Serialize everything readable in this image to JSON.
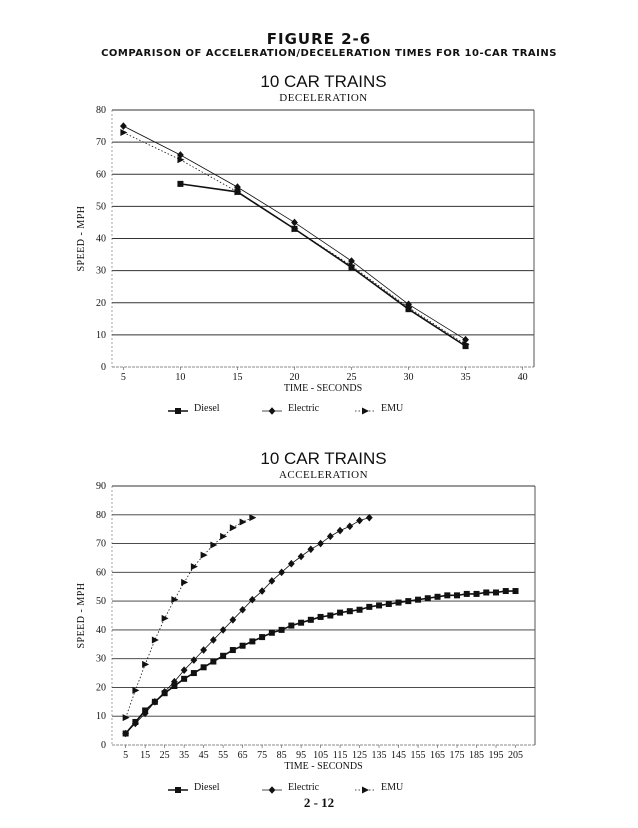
{
  "figure": {
    "number": "FIGURE 2-6",
    "subtitle": "COMPARISON OF ACCELERATION/DECELERATION TIMES FOR 10-CAR TRAINS"
  },
  "page_number": "2 - 12",
  "series_styles": {
    "Diesel": {
      "marker": "square",
      "line": "solid-bold",
      "color": "#111111"
    },
    "Electric": {
      "marker": "diamond",
      "line": "solid-thin",
      "color": "#111111"
    },
    "EMU": {
      "marker": "triangle-right",
      "line": "dotted",
      "color": "#111111"
    }
  },
  "chart_data": [
    {
      "type": "line",
      "title": "10 CAR TRAINS",
      "subtitle": "DECELERATION",
      "xlabel": "TIME - SECONDS",
      "ylabel": "SPEED - MPH",
      "xlim": [
        4,
        41
      ],
      "ylim": [
        0,
        80
      ],
      "xticks": [
        5,
        10,
        15,
        20,
        25,
        30,
        35,
        40
      ],
      "yticks": [
        0,
        10,
        20,
        30,
        40,
        50,
        60,
        70,
        80
      ],
      "grid": "horizontal",
      "legend": "bottom",
      "series": [
        {
          "name": "Diesel",
          "x": [
            10,
            15,
            20,
            25,
            30,
            35
          ],
          "y": [
            57,
            54.5,
            43,
            31,
            18,
            6.5
          ]
        },
        {
          "name": "Electric",
          "x": [
            5,
            10,
            15,
            20,
            25,
            30,
            35
          ],
          "y": [
            75,
            66,
            56,
            45,
            33,
            19.5,
            8.5
          ]
        },
        {
          "name": "EMU",
          "x": [
            5,
            10,
            15,
            20,
            25,
            30,
            35
          ],
          "y": [
            73,
            64.5,
            54.5,
            43,
            31.5,
            18.5,
            7
          ]
        }
      ]
    },
    {
      "type": "line",
      "title": "10 CAR TRAINS",
      "subtitle": "ACCELERATION",
      "xlabel": "TIME - SECONDS",
      "ylabel": "SPEED - MPH",
      "xlim": [
        -2,
        215
      ],
      "ylim": [
        0,
        90
      ],
      "xticks": [
        5,
        15,
        25,
        35,
        45,
        55,
        65,
        75,
        85,
        95,
        105,
        115,
        125,
        135,
        145,
        155,
        165,
        175,
        185,
        195,
        205
      ],
      "yticks": [
        0,
        10,
        20,
        30,
        40,
        50,
        60,
        70,
        80,
        90
      ],
      "grid": "horizontal",
      "legend": "bottom",
      "series": [
        {
          "name": "Diesel",
          "x": [
            5,
            10,
            15,
            20,
            25,
            30,
            35,
            40,
            45,
            50,
            55,
            60,
            65,
            70,
            75,
            80,
            85,
            90,
            95,
            100,
            105,
            110,
            115,
            120,
            125,
            130,
            135,
            140,
            145,
            150,
            155,
            160,
            165,
            170,
            175,
            180,
            185,
            190,
            195,
            200,
            205
          ],
          "y": [
            4,
            8,
            12,
            15,
            18,
            20.5,
            23,
            25,
            27,
            29,
            31,
            33,
            34.5,
            36,
            37.5,
            39,
            40,
            41.5,
            42.5,
            43.5,
            44.5,
            45,
            46,
            46.5,
            47,
            48,
            48.5,
            49,
            49.5,
            50,
            50.5,
            51,
            51.5,
            52,
            52,
            52.5,
            52.5,
            53,
            53,
            53.5,
            53.5
          ]
        },
        {
          "name": "Electric",
          "x": [
            5,
            10,
            15,
            20,
            25,
            30,
            35,
            40,
            45,
            50,
            55,
            60,
            65,
            70,
            75,
            80,
            85,
            90,
            95,
            100,
            105,
            110,
            115,
            120,
            125,
            130
          ],
          "y": [
            4,
            7.5,
            11,
            15,
            18.5,
            22,
            26,
            29.5,
            33,
            36.5,
            40,
            43.5,
            47,
            50.5,
            53.5,
            57,
            60,
            63,
            65.5,
            68,
            70,
            72.5,
            74.5,
            76,
            78,
            79
          ]
        },
        {
          "name": "EMU",
          "x": [
            5,
            10,
            15,
            20,
            25,
            30,
            35,
            40,
            45,
            50,
            55,
            60,
            65,
            70
          ],
          "y": [
            9.5,
            19,
            28,
            36.5,
            44,
            50.5,
            56.5,
            62,
            66,
            69.5,
            72.5,
            75.5,
            77.5,
            79
          ]
        }
      ]
    }
  ]
}
